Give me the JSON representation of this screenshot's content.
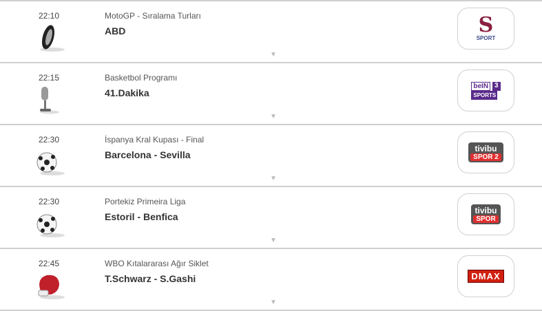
{
  "events": [
    {
      "time": "22:10",
      "league": "MotoGP - Sıralama Turları",
      "title": "ABD",
      "sport_icon": "tire-icon",
      "channel": {
        "name": "S Sport",
        "text": "SPORT",
        "mark": "S",
        "color": "#3a4a8a"
      }
    },
    {
      "time": "22:15",
      "league": "Basketbol Programı",
      "title": "41.Dakika",
      "sport_icon": "microphone-icon",
      "channel": {
        "name": "beIN Sports 3",
        "text": "SPORTS",
        "mark": "beIN",
        "num": "3",
        "color": "#5a2a8a"
      }
    },
    {
      "time": "22:30",
      "league": "İspanya Kral Kupası - Final",
      "title": "Barcelona - Sevilla",
      "sport_icon": "soccer-ball-icon",
      "channel": {
        "name": "Tivibu Spor 2",
        "text": "tivibu",
        "sub": "SPOR 2",
        "color": "#e03030"
      }
    },
    {
      "time": "22:30",
      "league": "Portekiz Primeira Liga",
      "title": "Estoril - Benfica",
      "sport_icon": "soccer-ball-icon",
      "channel": {
        "name": "Tivibu Spor",
        "text": "tivibu",
        "sub": "SPOR",
        "color": "#e03030"
      }
    },
    {
      "time": "22:45",
      "league": "WBO Kıtalararası Ağır Siklet",
      "title": "T.Schwarz - S.Gashi",
      "sport_icon": "boxing-glove-icon",
      "channel": {
        "name": "DMAX",
        "text": "DMAX",
        "color": "#d02010"
      }
    }
  ],
  "expand_arrow": "▼"
}
